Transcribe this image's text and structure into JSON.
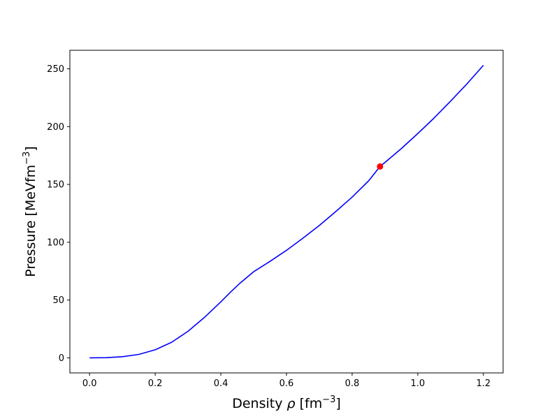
{
  "chart_data": {
    "type": "line",
    "xlabel": "Density ρ [fm⁻³]",
    "ylabel": "Pressure [MeVfm⁻³]",
    "xlim": [
      -0.06,
      1.26
    ],
    "ylim": [
      -13,
      266
    ],
    "xticks": [
      0.0,
      0.2,
      0.4,
      0.6,
      0.8,
      1.0,
      1.2
    ],
    "xtick_labels": [
      "0.0",
      "0.2",
      "0.4",
      "0.6",
      "0.8",
      "1.0",
      "1.2"
    ],
    "yticks": [
      0,
      50,
      100,
      150,
      200,
      250
    ],
    "ytick_labels": [
      "0",
      "50",
      "100",
      "150",
      "200",
      "250"
    ],
    "grid": false,
    "series": [
      {
        "color": "#0000ff",
        "x": [
          0.0,
          0.05,
          0.1,
          0.15,
          0.2,
          0.25,
          0.3,
          0.35,
          0.4,
          0.43,
          0.46,
          0.5,
          0.55,
          0.6,
          0.65,
          0.7,
          0.75,
          0.8,
          0.85,
          0.885,
          0.9,
          0.95,
          1.0,
          1.05,
          1.1,
          1.15,
          1.2
        ],
        "y": [
          0,
          0.2,
          1,
          3,
          7,
          13.5,
          23,
          35,
          48.5,
          57,
          65,
          74.5,
          83.5,
          93,
          103.5,
          114.5,
          126.5,
          139,
          153,
          165.5,
          169,
          181,
          194,
          207.5,
          222,
          237,
          253
        ]
      }
    ],
    "marker": {
      "x": 0.885,
      "y": 165.5,
      "color": "#ff0000"
    }
  }
}
